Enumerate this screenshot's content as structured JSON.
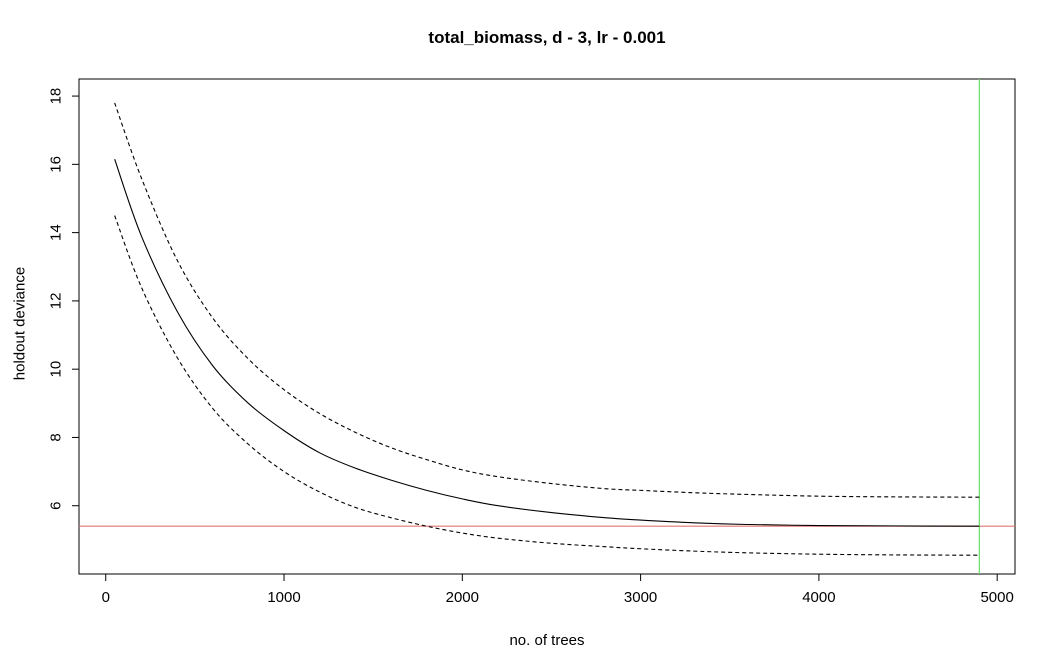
{
  "chart_data": {
    "type": "line",
    "title": "total_biomass, d - 3, lr - 0.001",
    "xlabel": "no. of trees",
    "ylabel": "holdout deviance",
    "xlim": [
      -150,
      5100
    ],
    "ylim": [
      4.0,
      18.5
    ],
    "x_ticks": [
      0,
      1000,
      2000,
      3000,
      4000,
      5000
    ],
    "y_ticks": [
      6,
      8,
      10,
      12,
      14,
      16,
      18
    ],
    "x": [
      50,
      200,
      400,
      600,
      800,
      1000,
      1200,
      1400,
      1600,
      1800,
      2000,
      2200,
      2500,
      2800,
      3000,
      3300,
      3600,
      4000,
      4400,
      4900
    ],
    "series": [
      {
        "role": "mean",
        "style": "solid",
        "color": "#000000",
        "values": [
          16.15,
          13.9,
          11.7,
          10.1,
          9.0,
          8.2,
          7.55,
          7.1,
          6.75,
          6.45,
          6.2,
          6.0,
          5.8,
          5.65,
          5.58,
          5.5,
          5.45,
          5.42,
          5.41,
          5.4
        ]
      },
      {
        "role": "upper",
        "style": "dashed",
        "color": "#000000",
        "values": [
          17.8,
          15.6,
          13.2,
          11.5,
          10.3,
          9.4,
          8.7,
          8.15,
          7.7,
          7.35,
          7.05,
          6.85,
          6.65,
          6.5,
          6.45,
          6.38,
          6.33,
          6.28,
          6.26,
          6.25
        ]
      },
      {
        "role": "lower",
        "style": "dashed",
        "color": "#000000",
        "values": [
          14.5,
          12.4,
          10.35,
          8.85,
          7.8,
          7.0,
          6.4,
          5.95,
          5.65,
          5.4,
          5.2,
          5.05,
          4.9,
          4.8,
          4.74,
          4.67,
          4.62,
          4.58,
          4.56,
          4.55
        ]
      }
    ],
    "reference_lines": [
      {
        "orientation": "horizontal",
        "value": 5.4,
        "color": "#e57373"
      },
      {
        "orientation": "vertical",
        "value": 4900,
        "color": "#66dd66"
      }
    ],
    "grid": false,
    "legend": "none"
  }
}
